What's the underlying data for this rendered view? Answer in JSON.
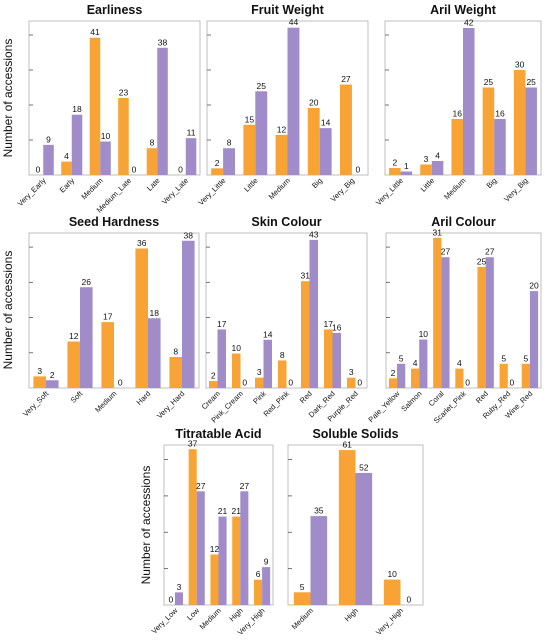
{
  "colors": {
    "series_a": "#F7A335",
    "series_b": "#9F8CC8"
  },
  "chart_data": [
    {
      "type": "bar",
      "title": "Earliness",
      "ylabel": "Number of accessions",
      "categories": [
        "Very_Early",
        "Early",
        "Medium",
        "Medium_Late",
        "Late",
        "Very_Late"
      ],
      "series": [
        {
          "values": [
            0,
            4,
            41,
            23,
            8,
            0
          ]
        },
        {
          "values": [
            9,
            18,
            10,
            0,
            38,
            11
          ]
        }
      ],
      "ylim": [
        0,
        46
      ]
    },
    {
      "type": "bar",
      "title": "Fruit Weight",
      "ylabel": "",
      "categories": [
        "Very_Little",
        "Little",
        "Medium",
        "Big",
        "Very_Big"
      ],
      "series": [
        {
          "values": [
            2,
            15,
            12,
            20,
            27
          ]
        },
        {
          "values": [
            8,
            25,
            44,
            14,
            0
          ]
        }
      ],
      "ylim": [
        0,
        46
      ]
    },
    {
      "type": "bar",
      "title": "Aril Weight",
      "ylabel": "",
      "categories": [
        "Very_Little",
        "Little",
        "Medium",
        "Big",
        "Very_Big"
      ],
      "series": [
        {
          "values": [
            2,
            3,
            16,
            25,
            30
          ]
        },
        {
          "values": [
            1,
            4,
            42,
            16,
            25
          ]
        }
      ],
      "ylim": [
        0,
        44
      ]
    },
    {
      "type": "bar",
      "title": "Seed Hardness",
      "ylabel": "Number of accessions",
      "categories": [
        "Very_Soft",
        "Soft",
        "Medium",
        "Hard",
        "Very_Hard"
      ],
      "series": [
        {
          "values": [
            3,
            12,
            17,
            36,
            8
          ]
        },
        {
          "values": [
            2,
            26,
            0,
            18,
            38
          ]
        }
      ],
      "ylim": [
        0,
        40
      ]
    },
    {
      "type": "bar",
      "title": "Skin Colour",
      "ylabel": "",
      "categories": [
        "Cream",
        "Pink_Cream",
        "Pink",
        "Red_Pink",
        "Red",
        "Dark_Red",
        "Purple_Red"
      ],
      "series": [
        {
          "values": [
            2,
            10,
            3,
            8,
            31,
            17,
            3
          ]
        },
        {
          "values": [
            17,
            0,
            14,
            0,
            43,
            16,
            0
          ]
        }
      ],
      "ylim": [
        0,
        45
      ]
    },
    {
      "type": "bar",
      "title": "Aril Colour",
      "ylabel": "",
      "categories": [
        "Pale_Yellow",
        "Salmon",
        "Coral",
        "Scarlet_Pink",
        "Red",
        "Ruby_Red",
        "Wine_Red"
      ],
      "series": [
        {
          "values": [
            2,
            4,
            31,
            4,
            25,
            5,
            5
          ]
        },
        {
          "values": [
            5,
            10,
            27,
            0,
            27,
            0,
            20
          ]
        }
      ],
      "ylim": [
        0,
        32
      ]
    },
    {
      "type": "bar",
      "title": "Titratable Acid",
      "ylabel": "Number of accessions",
      "categories": [
        "Very_Low",
        "Low",
        "Medium",
        "High",
        "Very_High"
      ],
      "series": [
        {
          "values": [
            0,
            37,
            12,
            21,
            6
          ]
        },
        {
          "values": [
            3,
            27,
            21,
            27,
            9
          ]
        }
      ],
      "ylim": [
        0,
        38
      ]
    },
    {
      "type": "bar",
      "title": "Soluble Solids",
      "ylabel": "",
      "categories": [
        "Medium",
        "High",
        "Very_High"
      ],
      "series": [
        {
          "values": [
            5,
            61,
            10
          ]
        },
        {
          "values": [
            35,
            52,
            0
          ]
        }
      ],
      "ylim": [
        0,
        63
      ]
    }
  ]
}
